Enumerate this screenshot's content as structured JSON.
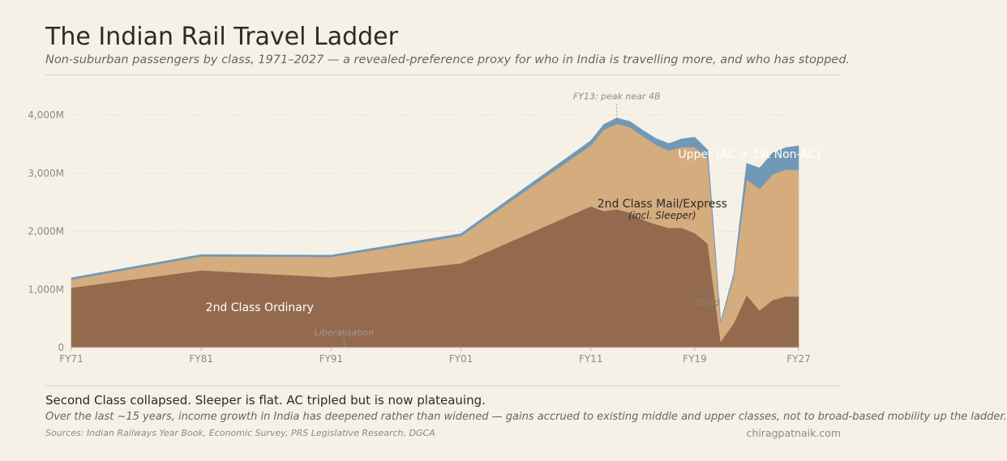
{
  "header": {
    "title": "The Indian Rail Travel Ladder",
    "subtitle": "Non-suburban passengers by class, 1971–2027 — a revealed-preference proxy for who in India is travelling more, and who has stopped."
  },
  "footer": {
    "headline": "Second Class collapsed. Sleeper is flat. AC tripled but is now plateauing.",
    "takeaway": "Over the last ~15 years, income growth in India has deepened rather than widened — gains accrued to existing middle and upper classes, not to broad-based mobility up the ladder.",
    "sources": "Sources: Indian Railways Year Book, Economic Survey, PRS Legislative Research, DGCA",
    "credit": "chiragpatnaik.com"
  },
  "chart_data": {
    "type": "area",
    "stacked": true,
    "x": [
      1971,
      1981,
      1991,
      2001,
      2011,
      2012,
      2013,
      2014,
      2015,
      2016,
      2017,
      2018,
      2019,
      2020,
      2021,
      2022,
      2023,
      2024,
      2025,
      2026,
      2027
    ],
    "x_ticks": [
      {
        "value": 1971,
        "label": "FY71"
      },
      {
        "value": 1981,
        "label": "FY81"
      },
      {
        "value": 1991,
        "label": "FY91"
      },
      {
        "value": 2001,
        "label": "FY01"
      },
      {
        "value": 2011,
        "label": "FY11"
      },
      {
        "value": 2019,
        "label": "FY19"
      },
      {
        "value": 2027,
        "label": "FY27"
      }
    ],
    "y_ticks": [
      {
        "value": 0,
        "label": "0"
      },
      {
        "value": 1000,
        "label": "1,000M"
      },
      {
        "value": 2000,
        "label": "2,000M"
      },
      {
        "value": 3000,
        "label": "3,000M"
      },
      {
        "value": 4000,
        "label": "4,000M"
      }
    ],
    "ylim": [
      0,
      4000
    ],
    "xlim": [
      1971,
      2027
    ],
    "grid": "horizontal dotted",
    "series": [
      {
        "name": "2nd Class Ordinary",
        "color": "#946a4e",
        "label_color": "#ffffff",
        "label_at": [
          1985.5,
          700
        ],
        "values": [
          1030,
          1330,
          1210,
          1450,
          2430,
          2350,
          2380,
          2320,
          2200,
          2120,
          2060,
          2060,
          1970,
          1790,
          100,
          420,
          900,
          640,
          820,
          880,
          880
        ]
      },
      {
        "name": "2nd Class Mail/Express",
        "sub_label": "(incl. Sleeper)",
        "color": "#d5ac7e",
        "label_color": "#2b2b2b",
        "label_at": [
          2016.5,
          2480
        ],
        "values": [
          140,
          240,
          350,
          470,
          1050,
          1400,
          1470,
          1470,
          1440,
          1370,
          1330,
          1390,
          1480,
          1460,
          330,
          800,
          1990,
          2090,
          2160,
          2180,
          2180
        ]
      },
      {
        "name": "Upper (AC + 1st Non-AC)",
        "color": "#7199b7",
        "label_color": "#ffffff",
        "label_at": [
          2023.2,
          3330
        ],
        "values": [
          30,
          30,
          30,
          40,
          80,
          90,
          100,
          100,
          100,
          110,
          120,
          140,
          170,
          150,
          20,
          50,
          280,
          360,
          370,
          380,
          410
        ]
      }
    ],
    "annotations": [
      {
        "text": "FY13: peak near 4B",
        "x": 2013,
        "y": 3950,
        "text_y": 4270
      },
      {
        "text": "Liberalisation",
        "x": 1992,
        "y": 0,
        "text_y": 240
      },
      {
        "text": "Covid",
        "x": 2021,
        "y": 0,
        "text_y": 780
      }
    ]
  }
}
